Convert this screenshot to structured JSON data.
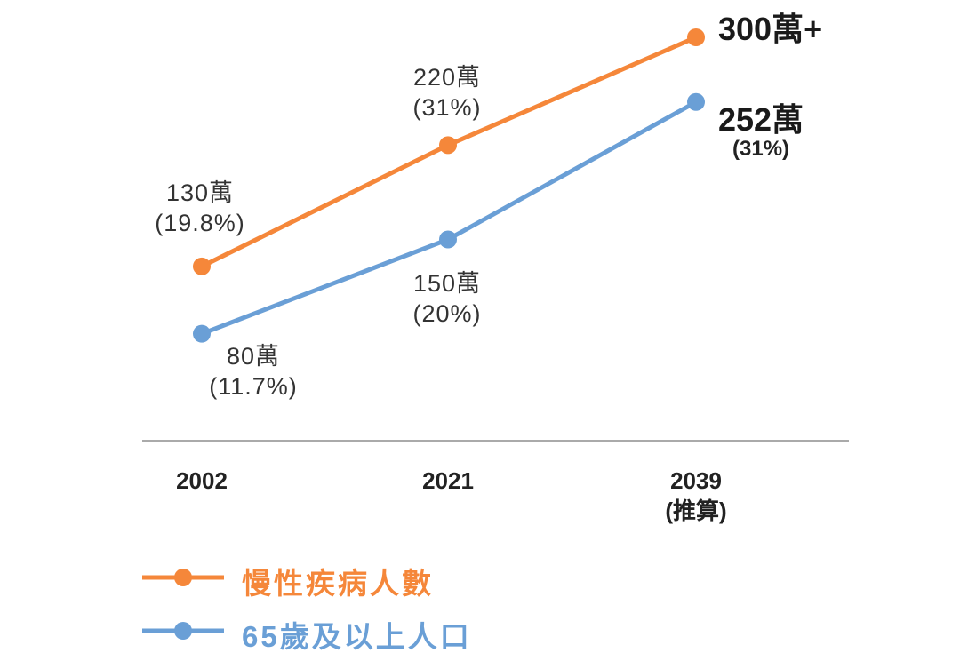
{
  "chart_data": {
    "type": "line",
    "categories": [
      "2002",
      "2021",
      "2039"
    ],
    "category_notes": [
      "",
      "",
      "(推算)"
    ],
    "series": [
      {
        "name": "慢性疾病人數",
        "color": "#F5873A",
        "values": [
          130,
          220,
          300
        ],
        "labels": [
          "130萬",
          "220萬",
          "300萬+"
        ],
        "sublabels": [
          "(19.8%)",
          "(31%)",
          ""
        ]
      },
      {
        "name": "65歲及以上人口",
        "color": "#6A9FD6",
        "values": [
          80,
          150,
          252
        ],
        "labels": [
          "80萬",
          "150萬",
          "252萬"
        ],
        "sublabels": [
          "(11.7%)",
          "(20%)",
          "(31%)"
        ]
      }
    ],
    "ylim": [
      0,
      300
    ],
    "grid": false,
    "legend": "bottom-left",
    "axis_color": "#AAAAAA"
  }
}
